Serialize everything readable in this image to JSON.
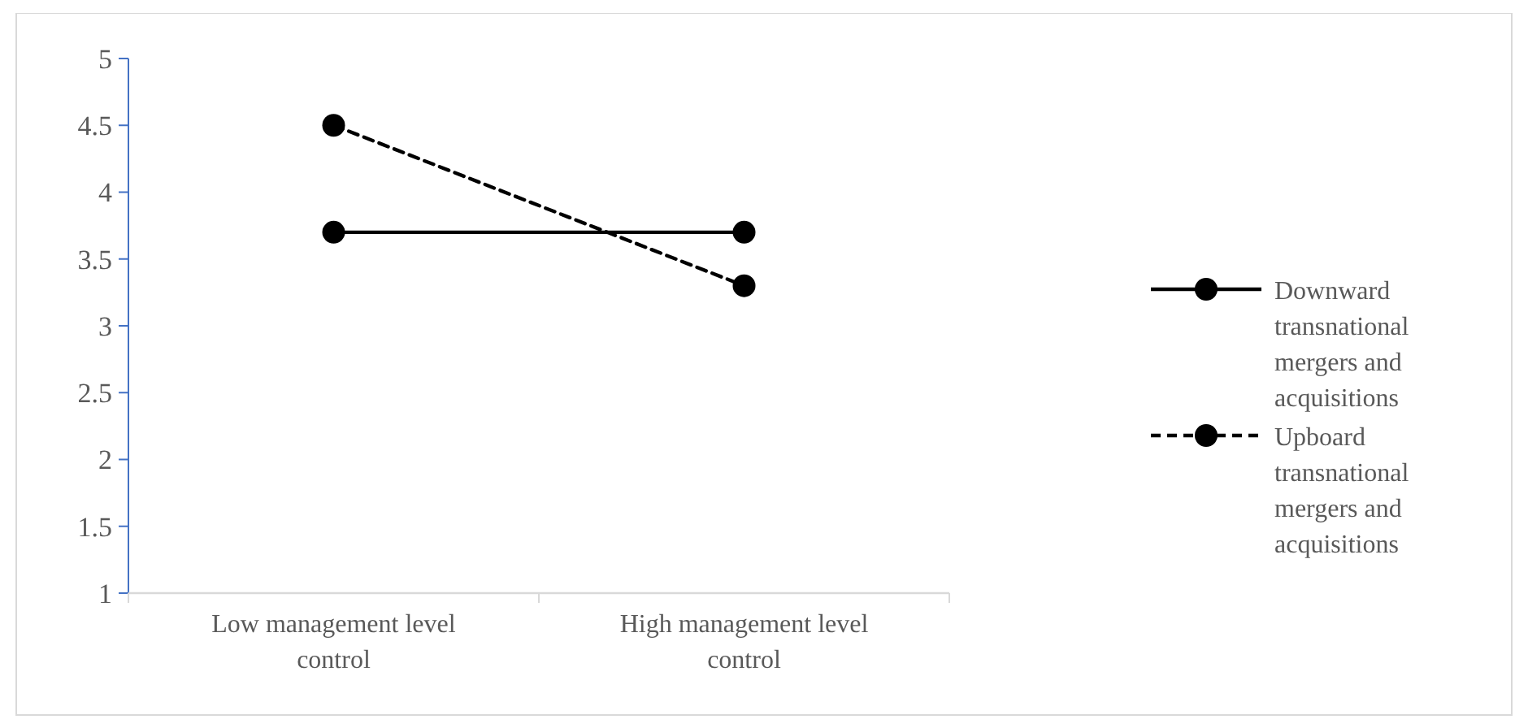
{
  "chart_data": {
    "type": "line",
    "categories": [
      "Low management level control",
      "High management level control"
    ],
    "series": [
      {
        "name": "Downward transnational mergers and acquisitions",
        "color": "#000000",
        "values": [
          3.7,
          3.7
        ],
        "line_style": "solid"
      },
      {
        "name": "Upboard transnational mergers and acquisitions",
        "color": "#000000",
        "values": [
          4.5,
          3.3
        ],
        "line_style": "dashed"
      }
    ],
    "ylim": [
      1,
      5
    ],
    "yticks": [
      1,
      1.5,
      2,
      2.5,
      3,
      3.5,
      4,
      4.5,
      5
    ],
    "grid": false,
    "legend": "right",
    "marker": "circle"
  }
}
